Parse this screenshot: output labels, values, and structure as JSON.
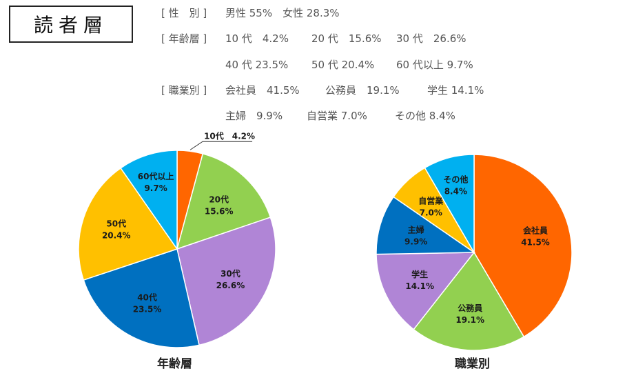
{
  "header": {
    "title": "読者層"
  },
  "summary": {
    "gender": {
      "label": "[ 性　別 ]",
      "text": "男性 55%　女性 28.3%"
    },
    "age": {
      "label": "[ 年齢層 ]",
      "line1": [
        "10 代　4.2%",
        "20 代　15.6%",
        "30 代　26.6%"
      ],
      "line2": [
        "40 代 23.5%",
        "50 代 20.4%",
        "60 代以上 9.7%"
      ]
    },
    "job": {
      "label": "[ 職業別 ]",
      "line1": [
        "会社員　41.5%",
        "公務員　19.1%",
        "学生 14.1%"
      ],
      "line2": [
        "主婦　9.9%",
        "自営業 7.0%",
        "その他 8.4%"
      ]
    }
  },
  "chart_data": [
    {
      "type": "pie",
      "title": "年齢層",
      "categories": [
        "10代",
        "20代",
        "30代",
        "40代",
        "50代",
        "60代以上"
      ],
      "values": [
        4.2,
        15.6,
        26.6,
        23.5,
        20.4,
        9.7
      ],
      "value_labels": [
        "4.2%",
        "15.6%",
        "26.6%",
        "23.5%",
        "20.4%",
        "9.7%"
      ],
      "colors": [
        "#ff6600",
        "#92d050",
        "#b085d6",
        "#0070c0",
        "#ffc000",
        "#00b0f0"
      ],
      "callout": "10代　4.2%",
      "start": "12 o'clock, clockwise"
    },
    {
      "type": "pie",
      "title": "職業別",
      "categories": [
        "会社員",
        "公務員",
        "学生",
        "主婦",
        "自営業",
        "その他"
      ],
      "values": [
        41.5,
        19.1,
        14.1,
        9.9,
        7.0,
        8.4
      ],
      "value_labels": [
        "41.5%",
        "19.1%",
        "14.1%",
        "9.9%",
        "7.0%",
        "8.4%"
      ],
      "colors": [
        "#ff6600",
        "#92d050",
        "#b085d6",
        "#0070c0",
        "#ffc000",
        "#00b0f0"
      ],
      "start": "12 o'clock, clockwise"
    }
  ]
}
